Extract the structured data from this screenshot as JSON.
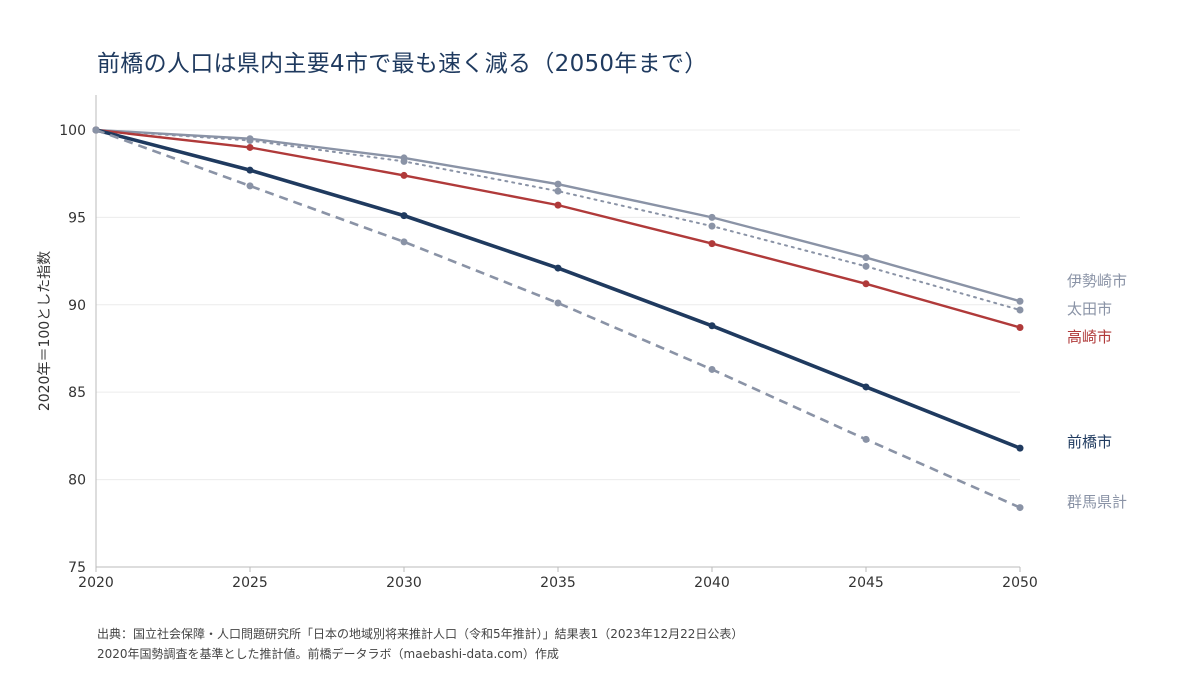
{
  "title": "前橋の人口は県内主要4市で最も速く減る（2050年まで）",
  "footer": {
    "source": "出典：国立社会保障・人口問題研究所「日本の地域別将来推計人口（令和5年推計）」結果表1（2023年12月22日公表）",
    "note": "2020年国勢調査を基準とした推計値。前橋データラボ（maebashi-data.com）作成"
  },
  "chart_data": {
    "type": "line",
    "title": "前橋の人口は県内主要4市で最も速く減る（2050年まで）",
    "xlabel": "",
    "ylabel": "2020年＝100とした指数",
    "x": [
      2020,
      2025,
      2030,
      2035,
      2040,
      2045,
      2050
    ],
    "xlim": [
      2020,
      2050
    ],
    "ylim": [
      75,
      102
    ],
    "yticks": [
      75,
      80,
      85,
      90,
      95,
      100
    ],
    "grid": "horizontal",
    "legend": "direct labels at right end",
    "series": [
      {
        "name": "伊勢崎市",
        "values": [
          100,
          99.5,
          98.4,
          96.9,
          95.0,
          92.7,
          90.2
        ],
        "color": "#8a93a6",
        "style": "solid"
      },
      {
        "name": "太田市",
        "values": [
          100,
          99.4,
          98.2,
          96.5,
          94.5,
          92.2,
          89.7
        ],
        "color": "#8a93a6",
        "style": "dotted"
      },
      {
        "name": "高崎市",
        "values": [
          100,
          99.0,
          97.4,
          95.7,
          93.5,
          91.2,
          88.7
        ],
        "color": "#b03a3a",
        "style": "solid"
      },
      {
        "name": "前橋市",
        "values": [
          100,
          97.7,
          95.1,
          92.1,
          88.8,
          85.3,
          81.8
        ],
        "color": "#1f3a5f",
        "style": "solid-thick"
      },
      {
        "name": "群馬県計",
        "values": [
          100,
          96.8,
          93.6,
          90.1,
          86.3,
          82.3,
          78.4
        ],
        "color": "#8a93a6",
        "style": "dashed"
      }
    ]
  }
}
